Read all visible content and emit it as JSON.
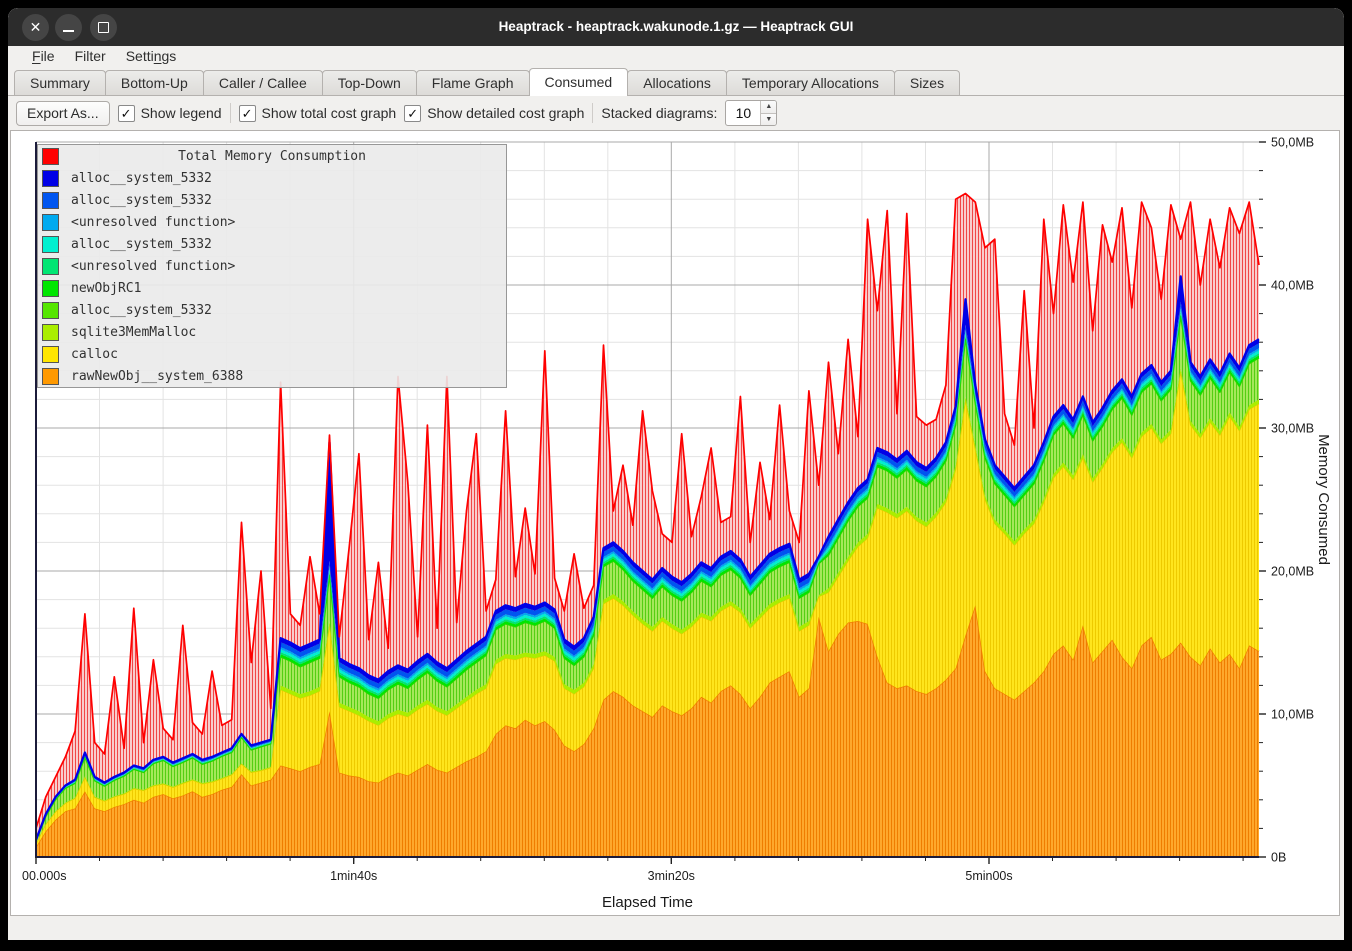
{
  "window": {
    "title": "Heaptrack - heaptrack.wakunode.1.gz — Heaptrack GUI",
    "controls": [
      "close",
      "minimize",
      "maximize"
    ]
  },
  "menu": {
    "items": [
      {
        "label": "File",
        "mnemonic_index": 0
      },
      {
        "label": "Filter",
        "mnemonic_index": -1
      },
      {
        "label": "Settings",
        "mnemonic_index": 5
      }
    ]
  },
  "tabs": {
    "items": [
      "Summary",
      "Bottom-Up",
      "Caller / Callee",
      "Top-Down",
      "Flame Graph",
      "Consumed",
      "Allocations",
      "Temporary Allocations",
      "Sizes"
    ],
    "active": "Consumed"
  },
  "toolbar": {
    "export_label": "Export As...",
    "checkboxes": [
      {
        "label": "Show legend",
        "checked": true
      },
      {
        "label": "Show total cost graph",
        "checked": true
      },
      {
        "label": "Show detailed cost graph",
        "checked": true
      }
    ],
    "spin_label": "Stacked diagrams:",
    "spin_value": "10",
    "check_glyph": "✓",
    "spin_up_glyph": "▲",
    "spin_down_glyph": "▼"
  },
  "chart_data": {
    "type": "area",
    "title": "Total Memory Consumption",
    "xlabel": "Elapsed Time",
    "ylabel": "Memory Consumed",
    "x_tick_labels": [
      "00.000s",
      "1min40s",
      "3min20s",
      "5min00s"
    ],
    "x_tick_seconds": [
      0,
      100,
      200,
      300
    ],
    "x_minor_step_seconds": 20,
    "x_max_seconds": 385,
    "y_tick_labels": [
      "0B",
      "10,0MB",
      "20,0MB",
      "30,0MB",
      "40,0MB",
      "50,0MB"
    ],
    "y_ticks_mb": [
      0,
      10,
      20,
      30,
      40,
      50
    ],
    "y_minor_step_mb": 2,
    "ylim_mb": [
      0,
      50
    ],
    "legend_position": "top-left-overlay",
    "grid": {
      "minor_color": "#e3e3e3",
      "major_color": "#a8a8a8",
      "axis_color": "#1b1b3a"
    },
    "legend_title": {
      "label": "Total Memory Consumption",
      "color": "#ff0000"
    },
    "legend_items": [
      {
        "label": "alloc__system_5332",
        "color": "#0000e6"
      },
      {
        "label": "alloc__system_5332",
        "color": "#0055f0"
      },
      {
        "label": "<unresolved function>",
        "color": "#00aaf0"
      },
      {
        "label": "alloc__system_5332",
        "color": "#00f0d0"
      },
      {
        "label": "<unresolved function>",
        "color": "#00e673"
      },
      {
        "label": "newObjRC1",
        "color": "#00e600"
      },
      {
        "label": "alloc__system_5332",
        "color": "#55e600"
      },
      {
        "label": "sqlite3MemMalloc",
        "color": "#aaee00"
      },
      {
        "label": "calloc",
        "color": "#ffe600"
      },
      {
        "label": "rawNewObj__system_6388",
        "color": "#ff9900"
      }
    ],
    "layers_bottom_to_top": [
      {
        "name": "rawNewObj__system_6388",
        "color": "#ff9900",
        "edge": "#ef7d00",
        "fill": "pattern-orange",
        "source": "orange_mb"
      },
      {
        "name": "calloc",
        "color": "#ffe600",
        "edge": "#e8c800",
        "fill": "pattern-yellow",
        "source": "derived-remainder"
      },
      {
        "name": "sqlite3MemMalloc",
        "color": "#aaee00",
        "weight": 0.3
      },
      {
        "name": "alloc__system_5332",
        "color": "#55e600",
        "edge": "#2fd400",
        "fill": "pattern-green",
        "source": "green_band_mb"
      },
      {
        "name": "newObjRC1",
        "color": "#00e600",
        "weight": 0.18
      },
      {
        "name": "<unresolved function>",
        "color": "#00e673",
        "weight": 0.15
      },
      {
        "name": "alloc__system_5332",
        "color": "#00f0d0",
        "weight": 0.2
      },
      {
        "name": "<unresolved function>",
        "color": "#00aaf0",
        "weight": 0.15
      },
      {
        "name": "alloc__system_5332",
        "color": "#0055f0",
        "weight": 0.35
      },
      {
        "name": "alloc__system_5332",
        "color": "#0000e6",
        "edge": "#0000e8",
        "weight": 0.27
      }
    ],
    "thin_weight_sum": 1.6,
    "thin_fraction_of_available": 0.3,
    "fills": {
      "red_bg": "#f9d2d2",
      "red_stripe": "#ee2222",
      "orange_bg": "#ffab2e",
      "orange_stripe": "#ef7d00",
      "yellow_bg": "#ffe51d",
      "yellow_stripe": "#eeca00",
      "green_bg": "#a9e95e",
      "green_stripe": "#54ce12"
    },
    "total_color": "#ff0000",
    "samples": 126,
    "total_mb": [
      2.0,
      4.2,
      5.6,
      7.0,
      8.8,
      17.0,
      8.0,
      7.2,
      12.6,
      7.6,
      17.4,
      8.0,
      13.8,
      9.0,
      8.2,
      16.2,
      9.4,
      8.6,
      13.0,
      9.2,
      9.6,
      23.4,
      13.6,
      20.0,
      10.4,
      33.2,
      17.0,
      16.2,
      21.0,
      17.0,
      29.5,
      15.4,
      21.6,
      28.2,
      15.2,
      20.6,
      14.6,
      33.6,
      26.2,
      15.4,
      30.2,
      16.0,
      33.6,
      16.4,
      24.2,
      29.6,
      17.2,
      19.4,
      31.2,
      19.6,
      24.4,
      19.8,
      35.4,
      19.5,
      17.2,
      21.2,
      17.4,
      19.0,
      35.8,
      24.2,
      27.4,
      23.2,
      31.2,
      25.6,
      22.6,
      22.0,
      29.6,
      22.4,
      25.2,
      28.6,
      23.4,
      23.8,
      32.2,
      22.0,
      27.6,
      23.6,
      31.6,
      24.2,
      22.0,
      32.6,
      26.0,
      34.6,
      28.2,
      36.2,
      29.4,
      44.6,
      38.2,
      45.2,
      31.0,
      45.0,
      30.8,
      30.2,
      30.6,
      33.0,
      46.0,
      46.4,
      45.8,
      42.6,
      43.2,
      31.0,
      28.8,
      39.6,
      30.0,
      44.6,
      38.0,
      45.6,
      40.2,
      45.8,
      36.8,
      44.2,
      41.6,
      45.4,
      38.4,
      45.8,
      44.0,
      39.0,
      45.6,
      43.2,
      45.8,
      40.0,
      44.6,
      41.2,
      45.4,
      43.6,
      45.8,
      41.4
    ],
    "stack_top_mb": [
      1.2,
      3.0,
      4.2,
      5.0,
      5.4,
      7.3,
      5.6,
      5.2,
      5.6,
      5.9,
      6.4,
      6.2,
      6.8,
      7.0,
      6.6,
      6.9,
      7.2,
      6.8,
      7.0,
      7.3,
      7.6,
      8.6,
      7.8,
      8.0,
      8.2,
      15.3,
      15.0,
      14.6,
      14.9,
      15.2,
      29.0,
      13.9,
      13.5,
      13.2,
      12.7,
      12.4,
      13.0,
      13.4,
      13.1,
      13.7,
      14.2,
      13.6,
      13.2,
      13.8,
      14.4,
      14.9,
      15.4,
      17.2,
      17.6,
      17.4,
      17.7,
      17.5,
      17.8,
      17.3,
      15.2,
      14.7,
      15.3,
      16.8,
      21.6,
      22.0,
      21.4,
      20.6,
      20.0,
      19.4,
      20.2,
      19.6,
      19.2,
      19.8,
      20.6,
      20.2,
      21.0,
      21.4,
      20.8,
      19.6,
      20.4,
      21.2,
      21.6,
      21.9,
      19.4,
      19.8,
      21.0,
      22.4,
      23.6,
      24.8,
      25.8,
      26.4,
      28.6,
      28.3,
      27.8,
      28.4,
      27.6,
      27.2,
      27.9,
      29.0,
      31.5,
      39.0,
      33.0,
      29.2,
      27.4,
      26.6,
      25.8,
      26.6,
      27.4,
      29.0,
      30.8,
      31.6,
      30.6,
      32.2,
      30.4,
      31.4,
      32.6,
      33.4,
      32.2,
      33.8,
      34.4,
      33.2,
      34.0,
      40.6,
      34.6,
      33.6,
      34.8,
      33.8,
      35.2,
      34.2,
      35.8,
      36.2
    ],
    "orange_mb": [
      0.7,
      1.8,
      2.6,
      3.2,
      3.4,
      4.6,
      3.4,
      3.2,
      3.5,
      3.7,
      4.0,
      3.8,
      4.2,
      4.4,
      4.1,
      4.3,
      4.6,
      4.2,
      4.4,
      4.7,
      4.9,
      5.8,
      5.0,
      5.2,
      5.4,
      6.4,
      6.2,
      6.0,
      6.3,
      6.5,
      10.2,
      5.9,
      5.7,
      5.6,
      5.3,
      5.2,
      5.6,
      5.9,
      5.7,
      6.1,
      6.5,
      6.1,
      5.9,
      6.3,
      6.7,
      7.0,
      7.4,
      8.6,
      9.2,
      9.0,
      9.6,
      9.2,
      9.5,
      8.9,
      7.8,
      7.4,
      7.9,
      9.0,
      11.0,
      11.6,
      11.2,
      10.6,
      10.2,
      9.8,
      10.6,
      10.2,
      9.9,
      10.4,
      11.2,
      10.8,
      11.6,
      12.0,
      11.4,
      10.4,
      11.2,
      12.2,
      12.6,
      13.0,
      11.2,
      11.8,
      16.8,
      14.4,
      15.6,
      16.4,
      16.5,
      16.3,
      14.0,
      12.2,
      11.8,
      12.0,
      11.6,
      11.4,
      11.8,
      12.4,
      13.2,
      15.5,
      17.6,
      13.0,
      11.8,
      11.4,
      11.0,
      11.6,
      12.2,
      13.0,
      14.2,
      14.8,
      13.8,
      16.2,
      13.6,
      14.4,
      15.2,
      14.0,
      13.2,
      14.8,
      15.4,
      13.8,
      14.2,
      15.0,
      14.0,
      13.4,
      14.6,
      13.6,
      14.2,
      13.2,
      14.8,
      14.4
    ],
    "green_band_mb": [
      0.2,
      0.5,
      0.8,
      1.0,
      1.0,
      1.3,
      1.1,
      1.0,
      1.1,
      1.2,
      1.3,
      1.2,
      1.5,
      1.6,
      1.4,
      1.4,
      1.5,
      1.3,
      1.4,
      1.5,
      1.5,
      1.8,
      1.5,
      1.6,
      1.6,
      2.0,
      2.0,
      1.9,
      2.0,
      2.0,
      3.2,
      1.8,
      1.7,
      1.7,
      1.6,
      1.6,
      1.7,
      1.8,
      1.7,
      1.8,
      1.9,
      1.8,
      1.7,
      1.8,
      1.9,
      1.9,
      2.0,
      2.1,
      2.1,
      2.0,
      2.1,
      2.0,
      2.1,
      2.0,
      1.8,
      1.7,
      1.8,
      2.0,
      2.3,
      2.3,
      2.2,
      2.1,
      2.1,
      2.0,
      2.1,
      2.0,
      2.0,
      2.1,
      2.2,
      2.1,
      2.2,
      2.2,
      2.1,
      2.0,
      2.1,
      2.2,
      2.2,
      2.2,
      2.0,
      2.0,
      2.2,
      2.3,
      2.4,
      2.5,
      2.5,
      2.5,
      2.6,
      2.6,
      2.5,
      2.6,
      2.5,
      2.5,
      2.5,
      2.6,
      2.8,
      4.0,
      2.9,
      2.6,
      2.5,
      2.4,
      2.4,
      2.4,
      2.5,
      2.6,
      2.7,
      2.7,
      2.6,
      2.7,
      2.6,
      2.6,
      2.7,
      2.8,
      2.7,
      2.8,
      2.8,
      2.7,
      2.8,
      3.6,
      2.8,
      2.7,
      2.8,
      2.7,
      2.8,
      2.8,
      2.9,
      2.9
    ],
    "blue_spike_extra_mb": {
      "30": 8.0,
      "95": 1.5,
      "117": 1.5
    }
  }
}
